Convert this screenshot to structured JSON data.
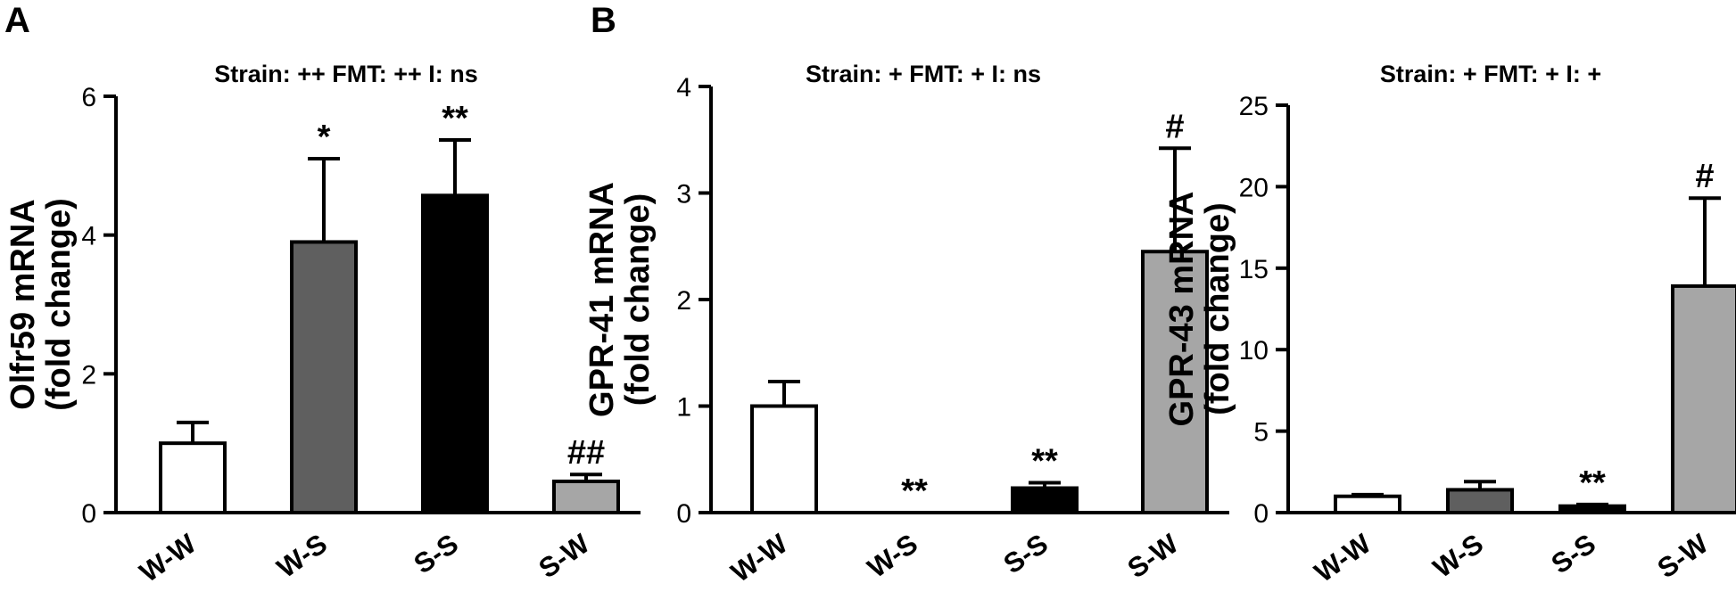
{
  "panel_labels": [
    "A",
    "B"
  ],
  "chart_data": [
    {
      "type": "bar",
      "stat_text": "Strain: ++  FMT: ++  I: ns",
      "ylabel_line1": "Olfr59 mRNA",
      "ylabel_line2": "(fold change)",
      "ylim": [
        0,
        6
      ],
      "yticks": [
        0,
        2,
        4,
        6
      ],
      "categories": [
        "W-W",
        "W-S",
        "S-S",
        "S-W"
      ],
      "values": [
        1.0,
        3.9,
        4.57,
        0.45
      ],
      "errors": [
        0.3,
        1.2,
        0.8,
        0.1
      ],
      "bar_colors": [
        "#ffffff",
        "#5f5f5f",
        "#000000",
        "#a6a6a6"
      ],
      "significance": [
        "",
        "*",
        "**",
        "##"
      ]
    },
    {
      "type": "bar",
      "stat_text": "Strain: +  FMT: +  I: ns",
      "ylabel_line1": "GPR-41 mRNA",
      "ylabel_line2": "(fold change)",
      "ylim": [
        0,
        4
      ],
      "yticks": [
        0,
        1,
        2,
        3,
        4
      ],
      "categories": [
        "W-W",
        "W-S",
        "S-S",
        "S-W"
      ],
      "values": [
        1.0,
        0.0,
        0.23,
        2.45
      ],
      "errors": [
        0.23,
        0.0,
        0.05,
        0.97
      ],
      "bar_colors": [
        "#ffffff",
        "#5f5f5f",
        "#000000",
        "#a6a6a6"
      ],
      "significance": [
        "",
        "**",
        "**",
        "#"
      ]
    },
    {
      "type": "bar",
      "stat_text": "Strain: +  FMT: +  I: +",
      "ylabel_line1": "GPR-43 mRNA",
      "ylabel_line2": "(fold change)",
      "ylim": [
        0,
        25
      ],
      "yticks": [
        0,
        5,
        10,
        15,
        20,
        25
      ],
      "categories": [
        "W-W",
        "W-S",
        "S-S",
        "S-W"
      ],
      "values": [
        1.0,
        1.4,
        0.4,
        13.9
      ],
      "errors": [
        0.1,
        0.5,
        0.1,
        5.4
      ],
      "bar_colors": [
        "#ffffff",
        "#5f5f5f",
        "#000000",
        "#a6a6a6"
      ],
      "significance": [
        "",
        "",
        "**",
        "#"
      ]
    }
  ]
}
